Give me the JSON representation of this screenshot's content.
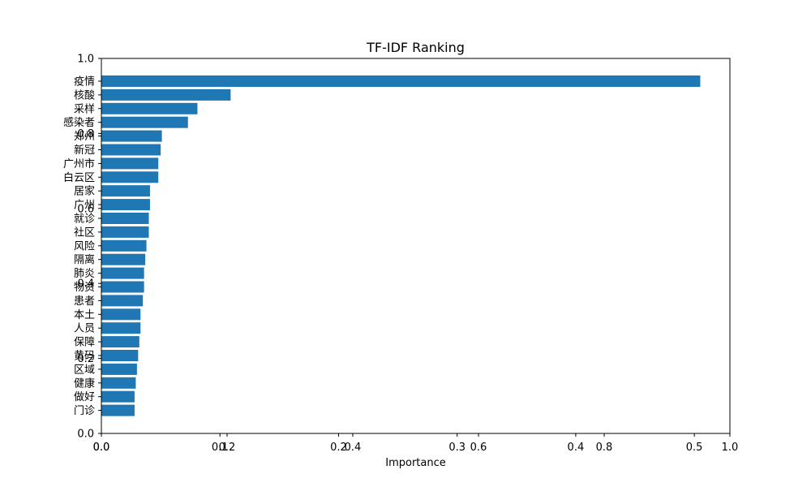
{
  "chart_data": {
    "type": "bar",
    "orientation": "horizontal",
    "title": "TF-IDF Ranking",
    "xlabel": "Importance",
    "ylabel": "",
    "xlim": [
      0,
      0.53
    ],
    "categories": [
      "疫情",
      "核酸",
      "采样",
      "感染者",
      "郑州",
      "新冠",
      "广州市",
      "白云区",
      "居家",
      "广州",
      "就诊",
      "社区",
      "风险",
      "隔离",
      "肺炎",
      "物资",
      "患者",
      "本土",
      "人员",
      "保障",
      "黄码",
      "区域",
      "健康",
      "做好",
      "门诊"
    ],
    "values": [
      0.505,
      0.109,
      0.081,
      0.073,
      0.051,
      0.05,
      0.048,
      0.048,
      0.041,
      0.041,
      0.04,
      0.04,
      0.038,
      0.037,
      0.036,
      0.036,
      0.035,
      0.033,
      0.033,
      0.032,
      0.031,
      0.03,
      0.029,
      0.028,
      0.028
    ],
    "bar_color": "#1f77b4",
    "grid": false,
    "x_ticks_primary": [
      "0.0",
      "0.1",
      "0.2",
      "0.3",
      "0.4",
      "0.5"
    ],
    "x_ticks_overlay": [
      "0.0",
      "0.2",
      "0.4",
      "0.6",
      "0.8",
      "1.0"
    ],
    "y_ticks_overlay": [
      "0.0",
      "0.2",
      "0.4",
      "0.6",
      "0.8",
      "1.0"
    ]
  }
}
